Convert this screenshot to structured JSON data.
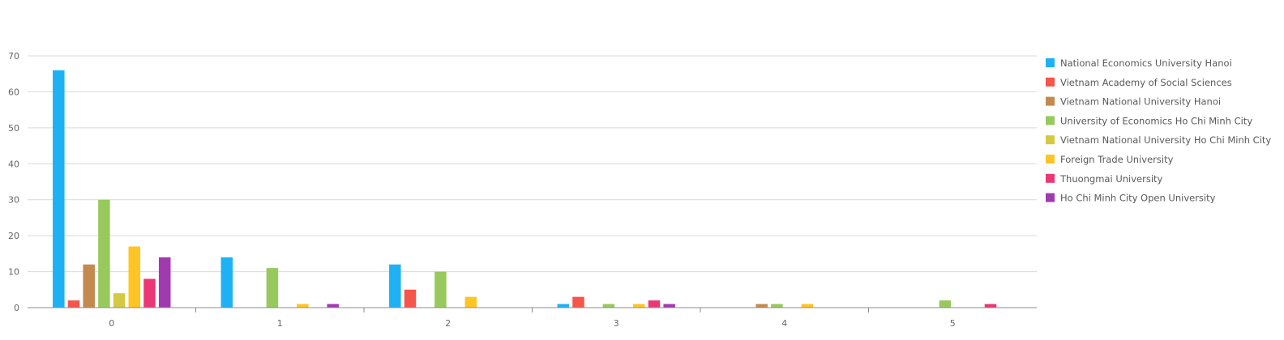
{
  "chart_data": {
    "type": "bar",
    "title": "",
    "xlabel": "",
    "ylabel": "",
    "categories": [
      "0",
      "1",
      "2",
      "3",
      "4",
      "5"
    ],
    "ylim": [
      0,
      70
    ],
    "yticks": [
      0,
      10,
      20,
      30,
      40,
      50,
      60,
      70
    ],
    "grid": true,
    "legend_position": "right",
    "series": [
      {
        "name": "National Economics University Hanoi",
        "color": "#1eb2f5",
        "values": [
          66,
          14,
          12,
          1,
          0,
          0
        ]
      },
      {
        "name": "Vietnam Academy of Social Sciences",
        "color": "#f5554a",
        "values": [
          2,
          0,
          5,
          3,
          0,
          0
        ]
      },
      {
        "name": "Vietnam National University Hanoi",
        "color": "#c4894f",
        "values": [
          12,
          0,
          0,
          0,
          1,
          0
        ]
      },
      {
        "name": "University of Economics Ho Chi Minh City",
        "color": "#97c95c",
        "values": [
          30,
          11,
          10,
          1,
          1,
          2
        ]
      },
      {
        "name": "Vietnam National University Ho Chi Minh City",
        "color": "#d4c942",
        "values": [
          4,
          0,
          0,
          0,
          0,
          0
        ]
      },
      {
        "name": "Foreign Trade University",
        "color": "#ffc425",
        "values": [
          17,
          1,
          3,
          1,
          1,
          0
        ]
      },
      {
        "name": "Thuongmai University",
        "color": "#ea3776",
        "values": [
          8,
          0,
          0,
          2,
          0,
          1
        ]
      },
      {
        "name": "Ho Chi Minh City Open University",
        "color": "#a13ab1",
        "values": [
          14,
          1,
          0,
          1,
          0,
          0
        ]
      }
    ]
  }
}
